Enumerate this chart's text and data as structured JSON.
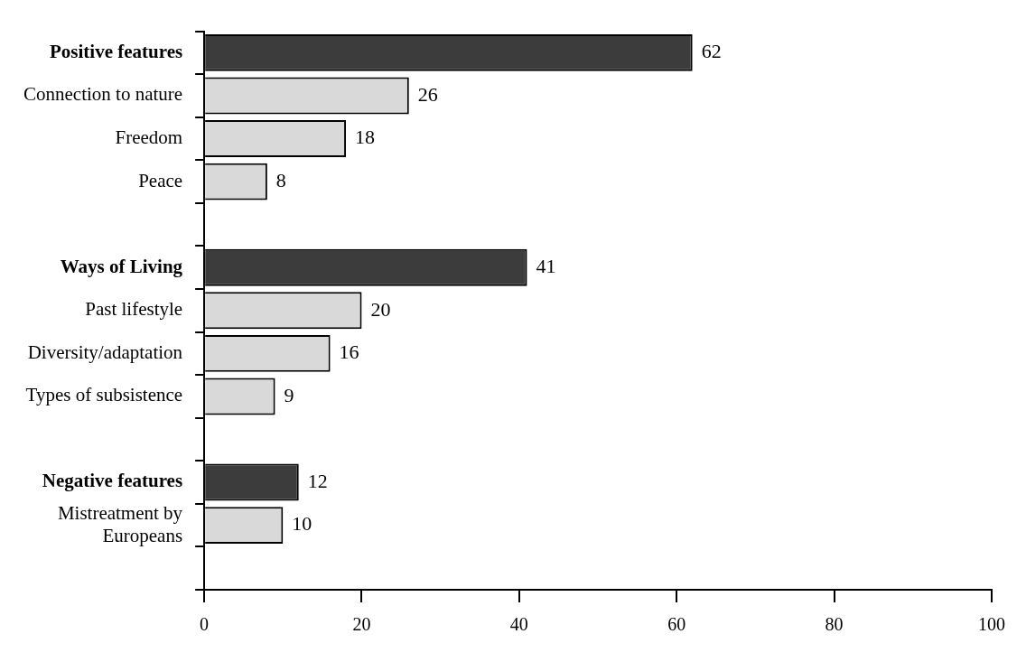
{
  "chart_data": {
    "type": "bar",
    "orientation": "horizontal",
    "categories": [
      "Positive features",
      "Connection to nature",
      "Freedom",
      "Peace",
      null,
      "Ways of Living",
      "Past lifestyle",
      "Diversity/adaptation",
      "Types of subsistence",
      null,
      "Negative features",
      "Mistreatment by Europeans",
      null
    ],
    "values": [
      62,
      26,
      18,
      8,
      null,
      41,
      20,
      16,
      9,
      null,
      12,
      10,
      null
    ],
    "colors": [
      "#3c3c3c",
      "#d9d9d9",
      "#d9d9d9",
      "#d9d9d9",
      null,
      "#3c3c3c",
      "#d9d9d9",
      "#d9d9d9",
      "#d9d9d9",
      null,
      "#3c3c3c",
      "#d9d9d9",
      null
    ],
    "xlim": [
      0,
      100
    ],
    "xticks": [
      0,
      20,
      40,
      60,
      80,
      100
    ],
    "data_labels": true,
    "grid": false,
    "legend": false
  }
}
